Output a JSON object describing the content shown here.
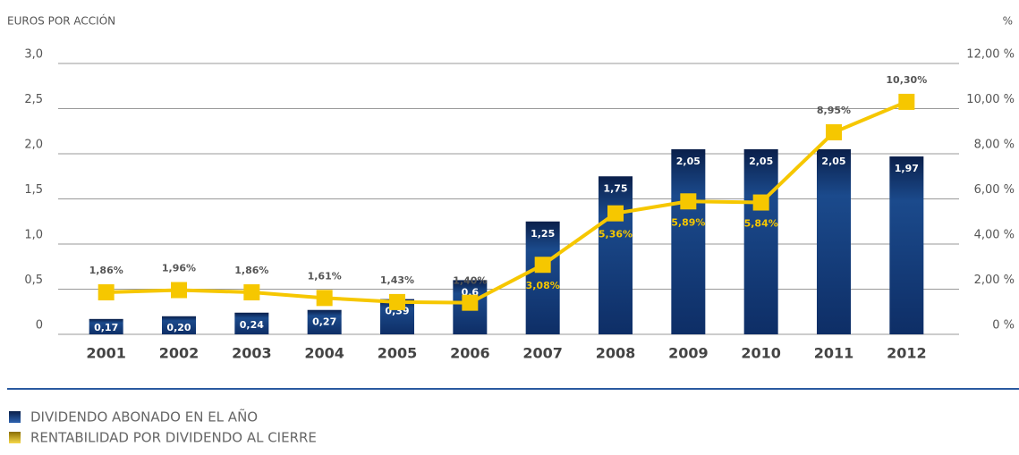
{
  "chart_data": {
    "type": "bar-line",
    "y_label": "EUROS POR ACCIÓN",
    "y2_label": "%",
    "categories": [
      "2001",
      "2002",
      "2003",
      "2004",
      "2005",
      "2006",
      "2007",
      "2008",
      "2009",
      "2010",
      "2011",
      "2012"
    ],
    "series": [
      {
        "name": "DIVIDENDO ABONADO EN EL AÑO",
        "type": "bar",
        "color": "#163d7c",
        "values": [
          0.17,
          0.2,
          0.24,
          0.27,
          0.39,
          0.6,
          1.25,
          1.75,
          2.05,
          2.05,
          2.05,
          1.97
        ],
        "value_labels": [
          "0,17",
          "0,20",
          "0,24",
          "0,27",
          "0,39",
          "0,6",
          "1,25",
          "1,75",
          "2,05",
          "2,05",
          "2,05",
          "1,97"
        ]
      },
      {
        "name": "RENTABILIDAD POR DIVIDENDO AL CIERRE",
        "type": "line",
        "axis": "y2",
        "color": "#f6c700",
        "values": [
          1.86,
          1.96,
          1.86,
          1.61,
          1.43,
          1.4,
          3.08,
          5.36,
          5.89,
          5.84,
          8.95,
          10.3
        ],
        "value_labels": [
          "1,86%",
          "1,96%",
          "1,86%",
          "1,61%",
          "1,43%",
          "1,40%",
          "3,08%",
          "5,36%",
          "5,89%",
          "5,84%",
          "8,95%",
          "10,30%"
        ]
      }
    ],
    "ylim": [
      0,
      3.0
    ],
    "yticks": [
      0,
      {
        "value": 0.5,
        "label": "0,5"
      },
      {
        "value": 1.0,
        "label": "1,0"
      },
      {
        "value": 1.5,
        "label": "1,5"
      },
      {
        "value": 2.0,
        "label": "2,0"
      },
      {
        "value": 2.5,
        "label": "2,5"
      },
      {
        "value": 3.0,
        "label": "3,0"
      }
    ],
    "y2lim": [
      0,
      12
    ],
    "y2ticks": [
      {
        "value": 0,
        "label": "0 %"
      },
      {
        "value": 2,
        "label": "2,00 %"
      },
      {
        "value": 4,
        "label": "4,00 %"
      },
      {
        "value": 6,
        "label": "6,00 %"
      },
      {
        "value": 8,
        "label": "8,00 %"
      },
      {
        "value": 10,
        "label": "10,00 %"
      },
      {
        "value": 12,
        "label": "12,00 %"
      }
    ],
    "grid": true
  }
}
